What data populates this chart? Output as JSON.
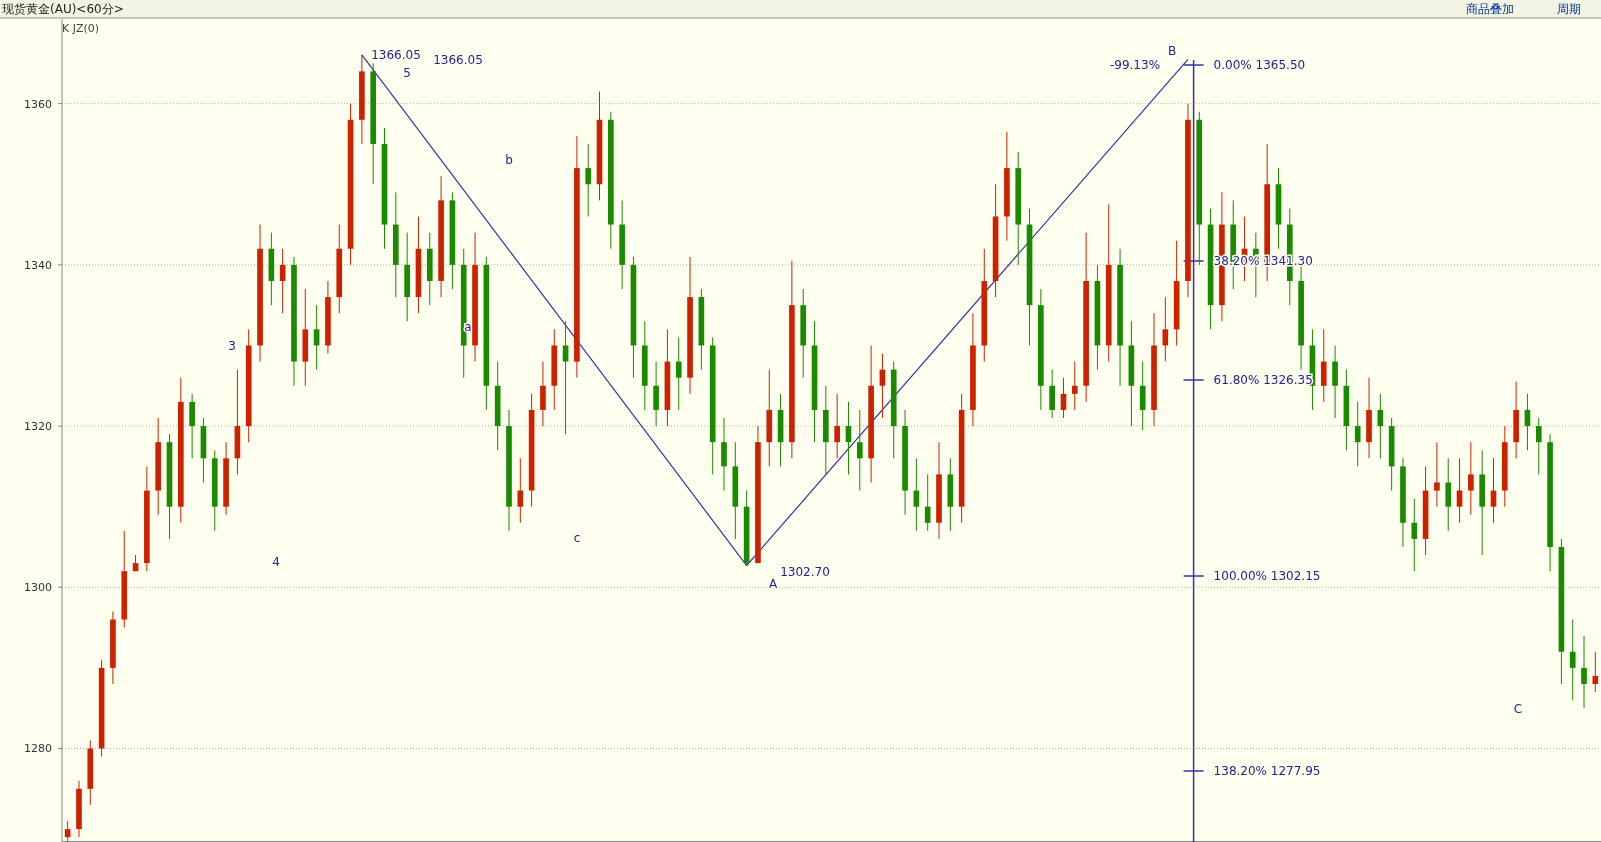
{
  "chart_data": {
    "type": "candlestick",
    "title": "现货黄金(AU)<60分>",
    "categories": [
      null,
      null,
      null,
      null,
      null,
      null,
      null,
      null,
      null,
      null,
      null,
      null,
      null,
      null,
      null,
      null,
      null,
      null,
      null,
      null,
      null,
      null,
      null,
      null,
      null,
      null,
      null,
      null,
      null,
      null,
      null,
      null,
      null,
      null,
      null,
      null,
      null,
      null,
      null,
      null,
      null,
      null,
      null,
      null,
      null,
      null,
      null,
      null,
      null,
      null,
      null,
      null,
      null,
      null,
      null,
      null,
      null,
      null,
      null,
      null,
      null,
      null,
      null,
      null,
      null,
      null,
      null,
      null,
      null,
      null,
      null,
      null,
      null,
      null,
      null,
      null,
      null,
      null,
      null,
      null,
      null,
      null,
      null,
      null,
      null,
      null,
      null,
      null,
      null,
      null,
      null,
      null,
      null,
      null,
      null,
      null,
      null,
      null,
      null,
      null,
      null,
      null,
      null,
      null,
      null,
      null,
      null,
      null,
      null,
      null,
      null,
      null,
      null,
      null,
      null,
      null,
      null,
      null,
      null,
      null,
      null,
      null,
      null,
      null,
      null,
      null,
      null,
      null,
      null,
      null,
      null,
      null,
      null,
      null,
      null,
      null
    ],
    "annotations": [
      "K JZ(0)",
      "商品叠加",
      "周期",
      "1366.05",
      "5",
      "1366.05",
      "3",
      "4",
      "a",
      "b",
      "c",
      "A",
      "1302.70",
      "B",
      "-99.13%",
      "C",
      "0.00%   1365.50",
      "38.20%   1341.30",
      "61.80%   1326.35",
      "100.00%   1302.15",
      "138.20%   1277.95"
    ],
    "ylim": [
      1268.4,
      1370.5
    ],
    "yticks": [
      1280,
      1300,
      1320,
      1340,
      1360
    ],
    "tick_labels": "y",
    "grid": "y",
    "series": [
      {
        "color": "#cc2200",
        "ohlc": [
          [
            1269,
            1271,
            1268.5,
            1270
          ],
          [
            1270,
            1276,
            1269,
            1275
          ],
          [
            1275,
            1281,
            1273,
            1280
          ],
          [
            1280,
            1291,
            1279,
            1290
          ],
          [
            1290,
            1297,
            1288,
            1296
          ],
          [
            1296,
            1307,
            1295,
            1302
          ],
          [
            1302,
            1304,
            1302,
            1303
          ],
          [
            1303,
            1315,
            1302,
            1312
          ],
          [
            1312,
            1321,
            1309,
            1318
          ],
          null,
          [
            1310,
            1326,
            1308,
            1323
          ],
          null,
          null,
          null,
          [
            1310,
            1318,
            1309,
            1316
          ],
          [
            1316,
            1327,
            1314,
            1320
          ],
          [
            1320,
            1332,
            1318,
            1330
          ],
          [
            1330,
            1345,
            1328,
            1342
          ],
          null,
          [
            1338,
            1342,
            1334,
            1340
          ],
          null,
          [
            1328,
            1337,
            1325,
            1332
          ],
          null,
          [
            1330,
            1338,
            1329,
            1336
          ],
          [
            1336,
            1345,
            1334,
            1342
          ],
          [
            1342,
            1360,
            1340,
            1358
          ],
          [
            1358,
            1366.05,
            1355,
            1364
          ],
          null,
          null,
          null,
          null,
          [
            1336,
            1346,
            1334,
            1342
          ],
          null,
          [
            1338,
            1351,
            1336,
            1348
          ],
          null,
          null,
          [
            1330,
            1344,
            1328,
            1340
          ],
          null,
          null,
          null,
          [
            1310,
            1316,
            1308,
            1312
          ],
          [
            1312,
            1324,
            1310,
            1322
          ],
          [
            1322,
            1328,
            1320,
            1325
          ],
          [
            1325,
            1332,
            1322,
            1330
          ],
          null,
          [
            1328,
            1356,
            1326,
            1352
          ],
          null,
          [
            1350,
            1361.5,
            1348,
            1358
          ],
          null,
          null,
          null,
          null,
          null,
          [
            1322,
            1332,
            1320,
            1328
          ],
          null,
          [
            1326,
            1341,
            1324,
            1336
          ],
          null,
          null,
          null,
          null,
          null,
          [
            1303,
            1320,
            1303,
            1318
          ],
          [
            1318,
            1327,
            1315,
            1322
          ],
          null,
          [
            1318,
            1340.5,
            1316,
            1335
          ],
          null,
          null,
          null,
          [
            1318,
            1324,
            1316,
            1320
          ],
          null,
          null,
          [
            1316,
            1330,
            1313,
            1325
          ],
          [
            1325,
            1329,
            1321,
            1327
          ],
          null,
          null,
          null,
          null,
          [
            1308,
            1318,
            1306,
            1314
          ],
          null,
          [
            1310,
            1324,
            1308,
            1322
          ],
          [
            1322,
            1334,
            1320,
            1330
          ],
          [
            1330,
            1342,
            1328,
            1338
          ],
          [
            1338,
            1350,
            1336,
            1346
          ],
          [
            1346,
            1356.5,
            1343,
            1352
          ],
          null,
          null,
          null,
          null,
          [
            1322,
            1326,
            1321,
            1324
          ],
          [
            1324,
            1328,
            1322,
            1325
          ],
          [
            1325,
            1344,
            1323,
            1338
          ],
          null,
          [
            1330,
            1347.5,
            1328,
            1340
          ],
          null,
          null,
          null,
          [
            1322,
            1334,
            1320,
            1330
          ],
          [
            1330,
            1336,
            1328,
            1332
          ],
          [
            1332,
            1343,
            1330,
            1338
          ],
          [
            1338,
            1360,
            1336,
            1358
          ],
          null,
          null,
          [
            1335,
            1349,
            1333,
            1345
          ],
          null,
          [
            1340,
            1346,
            1338,
            1342
          ],
          null,
          [
            1340,
            1355,
            1338,
            1350
          ],
          null,
          null,
          null,
          null,
          [
            1325,
            1332,
            1323,
            1328
          ],
          null,
          null,
          null,
          [
            1318,
            1326,
            1316,
            1322
          ],
          null,
          null,
          null,
          null,
          [
            1306,
            1315,
            1304,
            1312
          ],
          [
            1312,
            1318,
            1310,
            1313
          ],
          null,
          [
            1310,
            1316,
            1308,
            1312
          ],
          [
            1312,
            1318,
            1309,
            1314
          ],
          null,
          [
            1310,
            1316,
            1308,
            1312
          ],
          [
            1312,
            1320,
            1310,
            1318
          ],
          [
            1318,
            1325.5,
            1316,
            1322
          ],
          null,
          null,
          null,
          null,
          null,
          null,
          [
            1288,
            1292,
            1287,
            1289
          ]
        ]
      },
      {
        "color": "#1a8a00",
        "ohlc": [
          null,
          null,
          null,
          null,
          null,
          null,
          null,
          null,
          null,
          [
            1318,
            1319,
            1306,
            1310
          ],
          null,
          [
            1323,
            1324,
            1316,
            1320
          ],
          [
            1320,
            1321,
            1313,
            1316
          ],
          [
            1316,
            1317,
            1307,
            1310
          ],
          null,
          null,
          null,
          null,
          [
            1342,
            1344,
            1335,
            1338
          ],
          null,
          [
            1340,
            1341,
            1325,
            1328
          ],
          null,
          [
            1332,
            1335,
            1327,
            1330
          ],
          null,
          null,
          null,
          null,
          [
            1364,
            1365,
            1350,
            1355
          ],
          [
            1355,
            1357,
            1342,
            1345
          ],
          [
            1345,
            1349,
            1336,
            1340
          ],
          [
            1340,
            1344,
            1333,
            1336
          ],
          null,
          [
            1342,
            1344,
            1335,
            1338
          ],
          null,
          [
            1348,
            1349,
            1337,
            1340
          ],
          [
            1340,
            1342,
            1326,
            1330
          ],
          null,
          [
            1340,
            1341,
            1322,
            1325
          ],
          [
            1325,
            1328,
            1317,
            1320
          ],
          [
            1320,
            1322,
            1307,
            1310
          ],
          null,
          null,
          null,
          null,
          [
            1330,
            1333,
            1319,
            1328
          ],
          null,
          [
            1352,
            1355,
            1346,
            1350
          ],
          null,
          [
            1358,
            1359,
            1342,
            1345
          ],
          [
            1345,
            1348,
            1337,
            1340
          ],
          [
            1340,
            1341,
            1326,
            1330
          ],
          [
            1330,
            1333,
            1322,
            1325
          ],
          [
            1325,
            1328,
            1320,
            1322
          ],
          null,
          [
            1328,
            1331,
            1322,
            1326
          ],
          null,
          [
            1336,
            1337,
            1327,
            1330
          ],
          [
            1330,
            1331,
            1314,
            1318
          ],
          [
            1318,
            1321,
            1312,
            1315
          ],
          [
            1315,
            1318,
            1306,
            1310
          ],
          [
            1310,
            1312,
            1302.7,
            1303
          ],
          null,
          null,
          [
            1322,
            1324,
            1315,
            1318
          ],
          null,
          [
            1335,
            1337,
            1326,
            1330
          ],
          [
            1330,
            1333,
            1318,
            1322
          ],
          [
            1322,
            1325,
            1314,
            1318
          ],
          null,
          [
            1320,
            1323,
            1314,
            1318
          ],
          [
            1318,
            1322,
            1312,
            1316
          ],
          null,
          null,
          [
            1327,
            1328,
            1316,
            1320
          ],
          [
            1320,
            1322,
            1309,
            1312
          ],
          [
            1312,
            1316,
            1307,
            1310
          ],
          [
            1310,
            1314,
            1307,
            1308
          ],
          null,
          [
            1314,
            1316,
            1307,
            1310
          ],
          null,
          null,
          null,
          null,
          null,
          [
            1352,
            1354,
            1340,
            1345
          ],
          [
            1345,
            1347,
            1330,
            1335
          ],
          [
            1335,
            1337,
            1322,
            1325
          ],
          [
            1325,
            1327,
            1321,
            1322
          ],
          null,
          null,
          null,
          [
            1338,
            1340,
            1327,
            1330
          ],
          null,
          [
            1340,
            1342,
            1325,
            1330
          ],
          [
            1330,
            1333,
            1320,
            1325
          ],
          [
            1325,
            1328,
            1319.5,
            1322
          ],
          null,
          null,
          null,
          null,
          [
            1358,
            1359,
            1340,
            1345
          ],
          [
            1345,
            1347,
            1332,
            1335
          ],
          null,
          [
            1345,
            1348,
            1337,
            1340
          ],
          null,
          [
            1342,
            1344,
            1336,
            1340
          ],
          null,
          [
            1350,
            1352,
            1342,
            1345
          ],
          [
            1345,
            1347,
            1335,
            1338
          ],
          [
            1338,
            1340,
            1327,
            1330
          ],
          [
            1330,
            1332,
            1322,
            1325
          ],
          null,
          [
            1328,
            1330,
            1321,
            1325
          ],
          [
            1325,
            1327,
            1317,
            1320
          ],
          [
            1320,
            1323,
            1315,
            1318
          ],
          null,
          [
            1322,
            1324,
            1316,
            1320
          ],
          [
            1320,
            1321,
            1312,
            1315
          ],
          [
            1315,
            1316,
            1305,
            1308
          ],
          [
            1308,
            1311,
            1302,
            1306
          ],
          null,
          null,
          [
            1313,
            1316,
            1307,
            1310
          ],
          null,
          null,
          [
            1314,
            1317,
            1304,
            1310
          ],
          null,
          null,
          null,
          [
            1322,
            1324,
            1317,
            1320
          ],
          [
            1320,
            1321,
            1314,
            1318
          ],
          [
            1318,
            1319,
            1302,
            1305
          ],
          [
            1305,
            1306,
            1288,
            1292
          ],
          [
            1292,
            1296,
            1286,
            1290
          ],
          [
            1290,
            1294,
            1285,
            1288
          ],
          null
        ]
      },
      {
        "type": "line",
        "color": "#3333aa",
        "values": [
          null,
          null,
          null,
          null,
          null,
          null,
          null,
          null,
          null,
          null,
          null,
          null,
          null,
          null,
          null,
          null,
          null,
          null,
          null,
          null,
          null,
          null,
          null,
          null,
          null,
          null,
          1366.05,
          null,
          null,
          null,
          null,
          null,
          null,
          null,
          null,
          null,
          null,
          null,
          null,
          null,
          null,
          null,
          null,
          null,
          null,
          null,
          null,
          null,
          null,
          null,
          null,
          null,
          null,
          null,
          null,
          null,
          null,
          null,
          null,
          null,
          1302.7,
          null,
          null,
          null,
          null,
          null,
          null,
          null,
          null,
          null,
          null,
          null,
          null,
          null,
          null,
          null,
          null,
          null,
          null,
          null,
          null,
          null,
          null,
          null,
          null,
          null,
          null,
          null,
          null,
          null,
          null,
          null,
          null,
          null,
          null,
          null,
          null,
          null,
          null,
          1365.5,
          null,
          null,
          null,
          null,
          null,
          null,
          null,
          null,
          null,
          null,
          null,
          null,
          null,
          null,
          null,
          null,
          null,
          null,
          null,
          null,
          null,
          null,
          null,
          null,
          null,
          null,
          null,
          null,
          null,
          null,
          null,
          null,
          null,
          null,
          null,
          null
        ]
      }
    ]
  }
}
